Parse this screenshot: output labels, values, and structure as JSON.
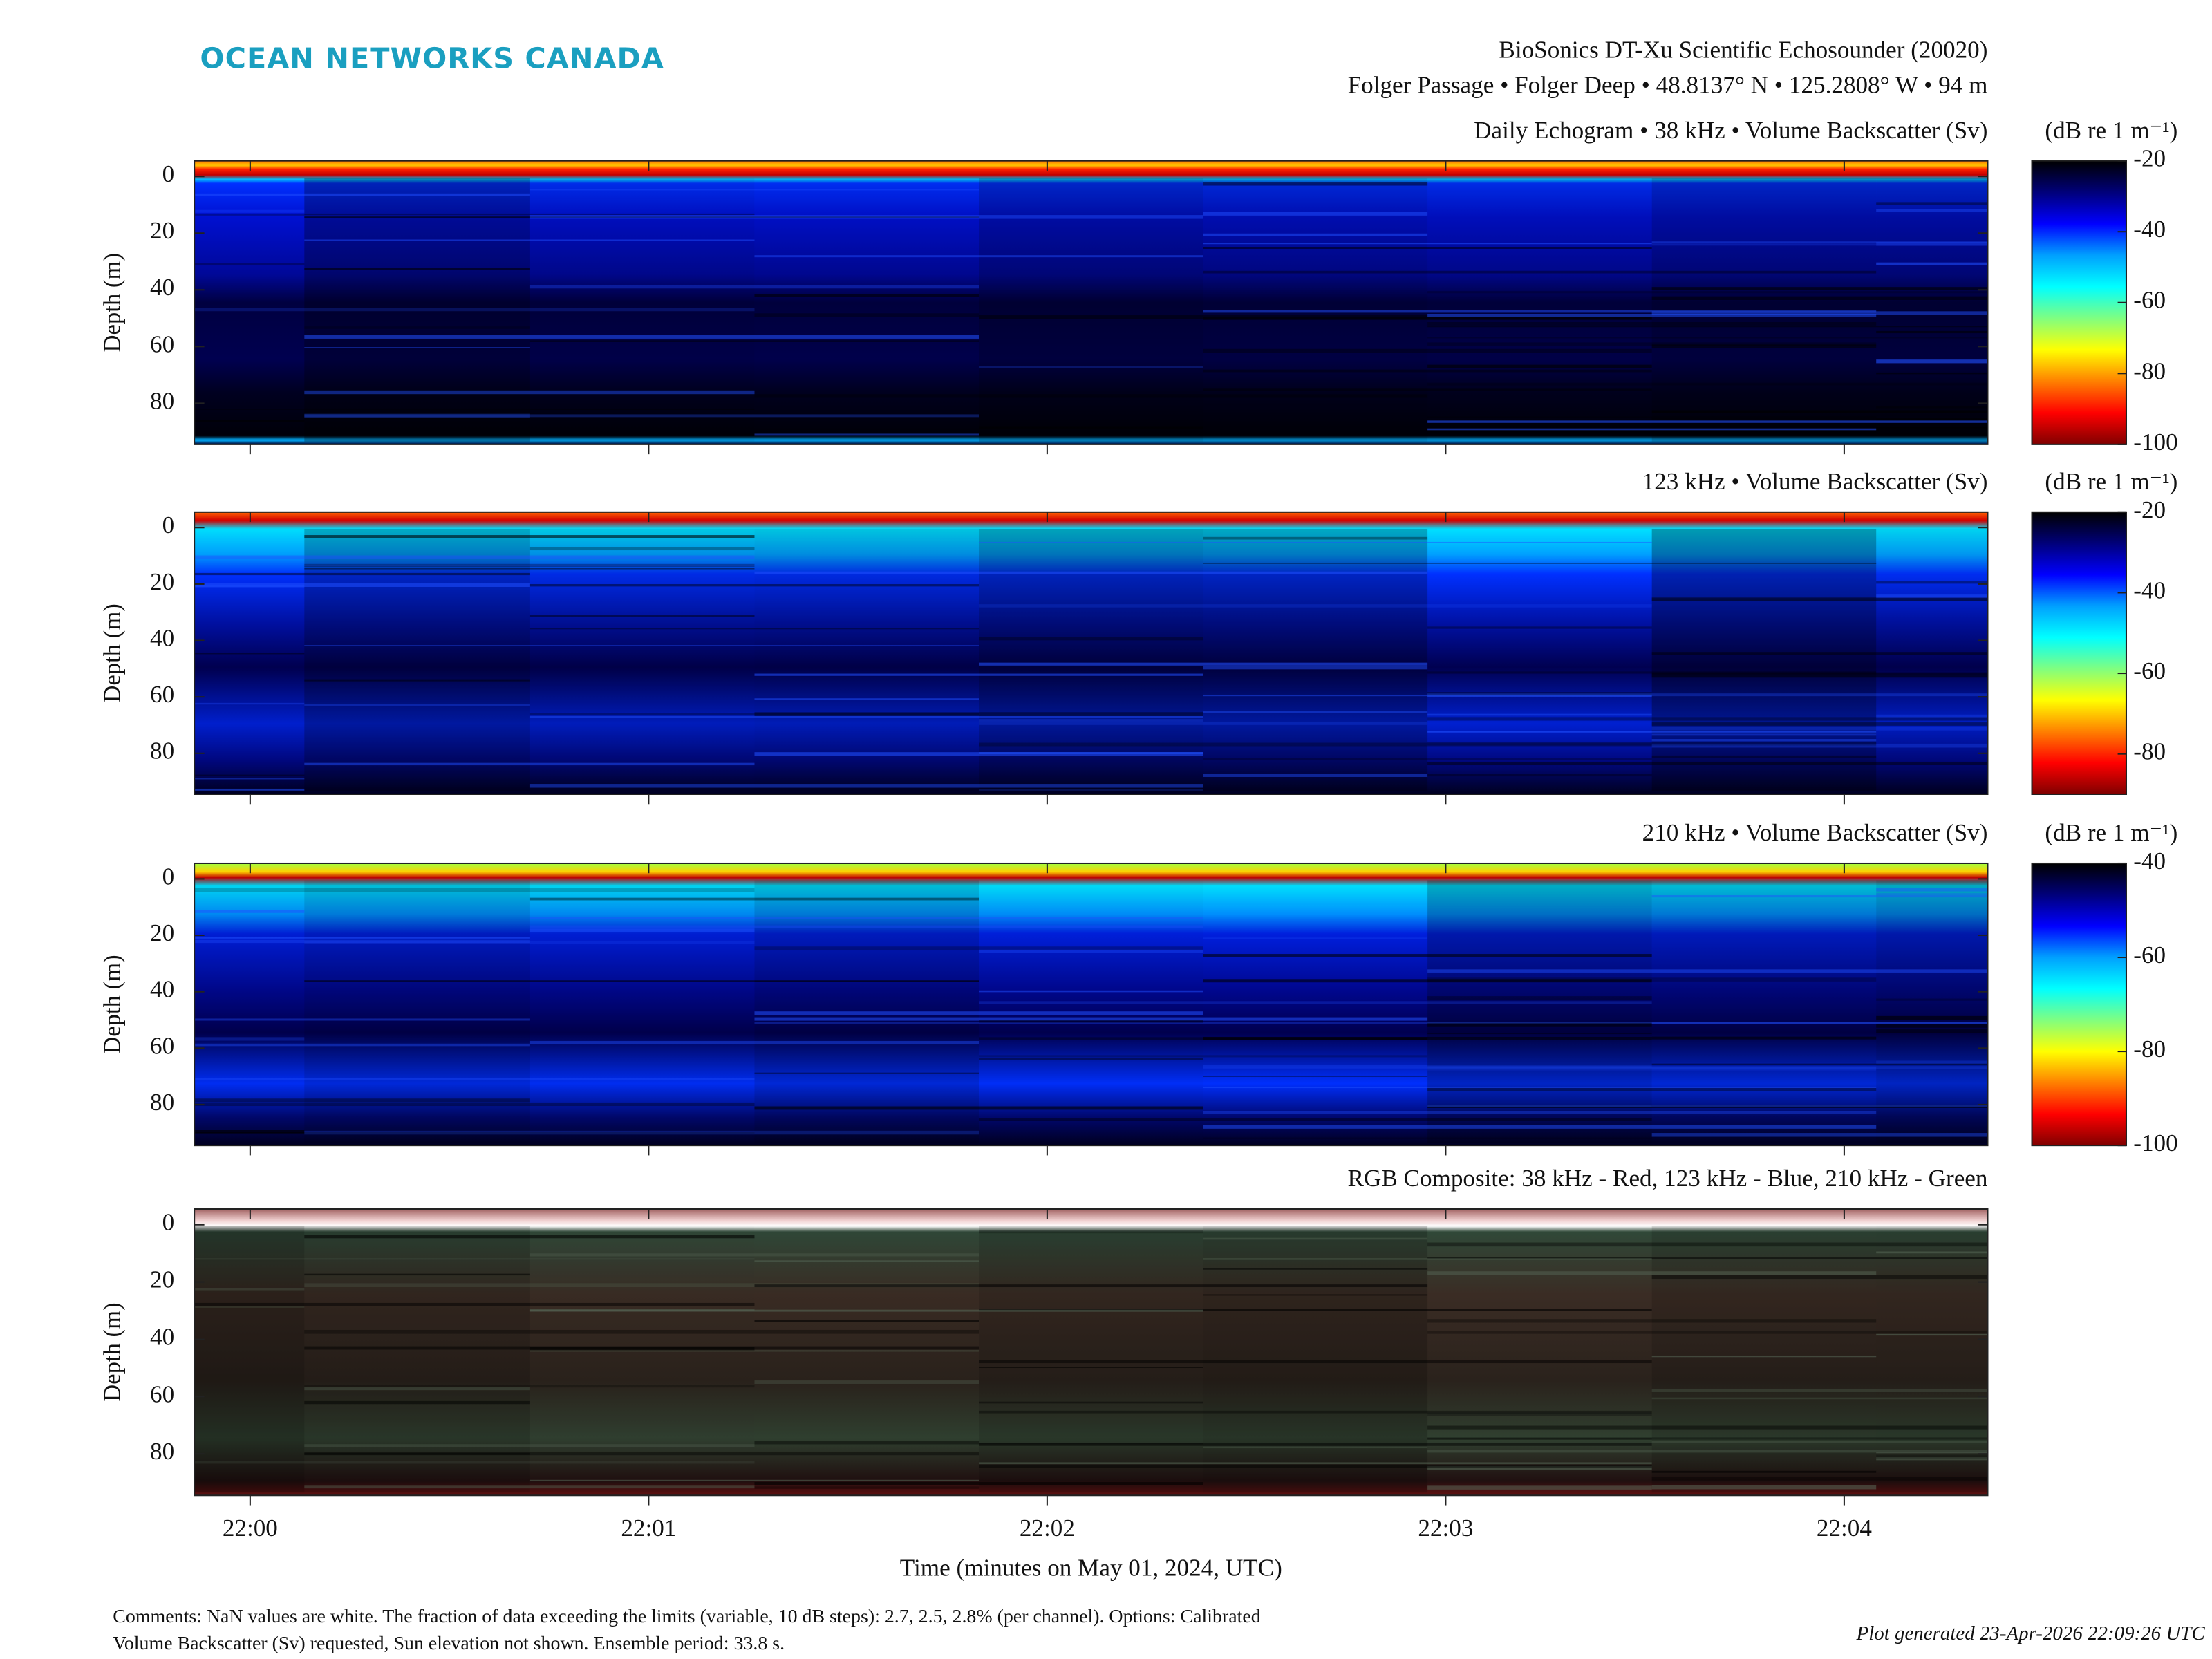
{
  "logo": "OCEAN NETWORKS CANADA",
  "title_lines": [
    "BioSonics DT-Xu Scientific Echosounder (20020)",
    "Folger Passage • Folger Deep • 48.8137° N • 125.2808° W • 94 m"
  ],
  "chart_data": [
    {
      "type": "heatmap",
      "title": "Daily Echogram • 38 kHz • Volume Backscatter (Sv)",
      "ylabel": "Depth (m)",
      "ylim": [
        -5.5,
        94.5
      ],
      "y_reversed": true,
      "yticks": [
        0,
        20,
        40,
        60,
        80
      ],
      "colorbar": {
        "label": "(dB re 1 m⁻¹)",
        "lim": [
          -100,
          -20
        ],
        "ticks": [
          -100,
          -80,
          -60,
          -40,
          -20
        ],
        "colormap": [
          "#000000",
          "#00007a",
          "#0000ff",
          "#00a0ff",
          "#00ffff",
          "#80ff80",
          "#ffff00",
          "#ff8000",
          "#ff0000",
          "#800000"
        ]
      }
    },
    {
      "type": "heatmap",
      "title": "123 kHz • Volume Backscatter (Sv)",
      "ylabel": "Depth (m)",
      "ylim": [
        -5.5,
        94.5
      ],
      "y_reversed": true,
      "yticks": [
        0,
        20,
        40,
        60,
        80
      ],
      "colorbar": {
        "label": "(dB re 1 m⁻¹)",
        "lim": [
          -90,
          -20
        ],
        "ticks": [
          -80,
          -60,
          -40,
          -20
        ],
        "colormap": [
          "#000000",
          "#00007a",
          "#0000ff",
          "#00a0ff",
          "#00ffff",
          "#80ff80",
          "#ffff00",
          "#ff8000",
          "#ff0000",
          "#800000"
        ]
      }
    },
    {
      "type": "heatmap",
      "title": "210 kHz • Volume Backscatter (Sv)",
      "ylabel": "Depth (m)",
      "ylim": [
        -5.5,
        94.5
      ],
      "y_reversed": true,
      "yticks": [
        0,
        20,
        40,
        60,
        80
      ],
      "colorbar": {
        "label": "(dB re 1 m⁻¹)",
        "lim": [
          -100,
          -40
        ],
        "ticks": [
          -100,
          -80,
          -60,
          -40
        ],
        "colormap": [
          "#000000",
          "#00007a",
          "#0000ff",
          "#00a0ff",
          "#00ffff",
          "#80ff80",
          "#ffff00",
          "#ff8000",
          "#ff0000",
          "#800000"
        ]
      }
    },
    {
      "type": "rgb",
      "title": "RGB Composite: 38 kHz - Red, 123 kHz - Blue, 210 kHz - Green",
      "ylabel": "Depth (m)",
      "ylim": [
        -5.5,
        94.5
      ],
      "y_reversed": true,
      "yticks": [
        0,
        20,
        40,
        60,
        80
      ],
      "xlabel": "Time (minutes on May 01, 2024, UTC)",
      "xlim": [
        -0.14,
        4.36
      ],
      "xticks": [
        {
          "value": 0,
          "label": "22:00"
        },
        {
          "value": 1,
          "label": "22:01"
        },
        {
          "value": 2,
          "label": "22:02"
        },
        {
          "value": 3,
          "label": "22:03"
        },
        {
          "value": 4,
          "label": "22:04"
        }
      ]
    }
  ],
  "comments": [
    "Comments: NaN values are white. The fraction of data exceeding the limits (variable, 10 dB steps): 2.7, 2.5, 2.8% (per channel). Options: Calibrated",
    "Volume Backscatter (Sv) requested, Sun elevation not shown. Ensemble period: 33.8 s."
  ],
  "generated": "Plot generated 23-Apr-2026 22:09:26 UTC"
}
